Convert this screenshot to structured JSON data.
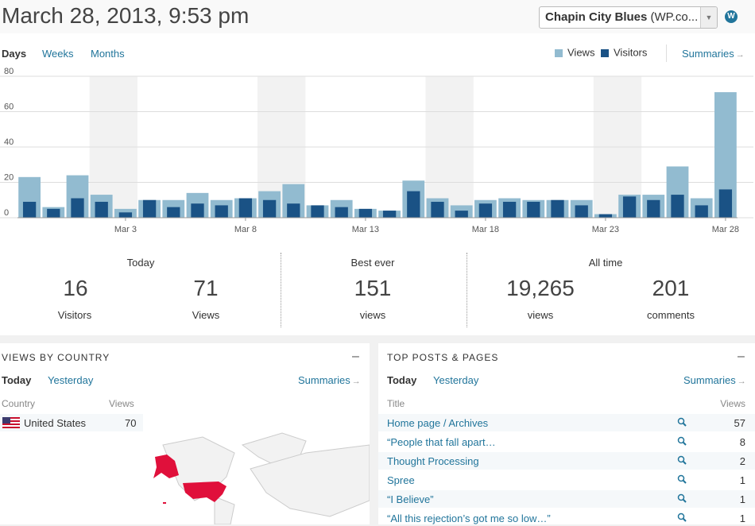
{
  "header": {
    "title": "March 28, 2013, 9:53 pm",
    "site_name": "Chapin City Blues",
    "site_suffix": "(WP.co..."
  },
  "chart_tabs": [
    "Days",
    "Weeks",
    "Months"
  ],
  "chart_summaries": "Summaries",
  "chart_data": {
    "type": "bar",
    "categories": [
      null,
      null,
      null,
      null,
      "Mar 3",
      null,
      null,
      null,
      null,
      "Mar 8",
      null,
      null,
      null,
      null,
      "Mar 13",
      null,
      null,
      null,
      null,
      "Mar 18",
      null,
      null,
      null,
      null,
      "Mar 23",
      null,
      null,
      null,
      null,
      "Mar 28"
    ],
    "series": [
      {
        "name": "Views",
        "color": "#92bbd0",
        "values": [
          23,
          6,
          24,
          13,
          5,
          10,
          10,
          14,
          10,
          11,
          15,
          19,
          7,
          10,
          5,
          4,
          21,
          11,
          7,
          10,
          11,
          10,
          10,
          10,
          2,
          13,
          13,
          29,
          11,
          71
        ]
      },
      {
        "name": "Visitors",
        "color": "#1a5285",
        "values": [
          9,
          5,
          11,
          9,
          3,
          10,
          6,
          8,
          7,
          11,
          10,
          8,
          7,
          6,
          5,
          4,
          15,
          9,
          4,
          8,
          9,
          9,
          10,
          7,
          2,
          12,
          10,
          13,
          7,
          16
        ]
      }
    ],
    "ylim": [
      0,
      80
    ],
    "yticks": [
      0,
      20,
      40,
      60,
      80
    ],
    "grid": true,
    "legend": "top-right"
  },
  "summary": {
    "today": {
      "label": "Today",
      "visitors": 16,
      "visitors_label": "Visitors",
      "views": 71,
      "views_label": "Views"
    },
    "best": {
      "label": "Best ever",
      "views": 151,
      "views_label": "views"
    },
    "all_time": {
      "label": "All time",
      "views": "19,265",
      "views_label": "views",
      "comments": 201,
      "comments_label": "comments"
    }
  },
  "country": {
    "title": "VIEWS BY COUNTRY",
    "tabs": [
      "Today",
      "Yesterday"
    ],
    "summaries": "Summaries",
    "columns": [
      "Country",
      "Views"
    ],
    "rows": [
      {
        "country": "United States",
        "views": 70
      }
    ]
  },
  "posts": {
    "title": "TOP POSTS & PAGES",
    "tabs": [
      "Today",
      "Yesterday"
    ],
    "summaries": "Summaries",
    "columns": [
      "Title",
      "Views"
    ],
    "rows": [
      {
        "title": "Home page / Archives",
        "views": 57
      },
      {
        "title": "“People that fall apart…",
        "views": 8
      },
      {
        "title": "Thought Processing",
        "views": 2
      },
      {
        "title": "Spree",
        "views": 1
      },
      {
        "title": "“I Believe”",
        "views": 1
      },
      {
        "title": "“All this rejection’s got me so low…”",
        "views": 1
      }
    ]
  }
}
